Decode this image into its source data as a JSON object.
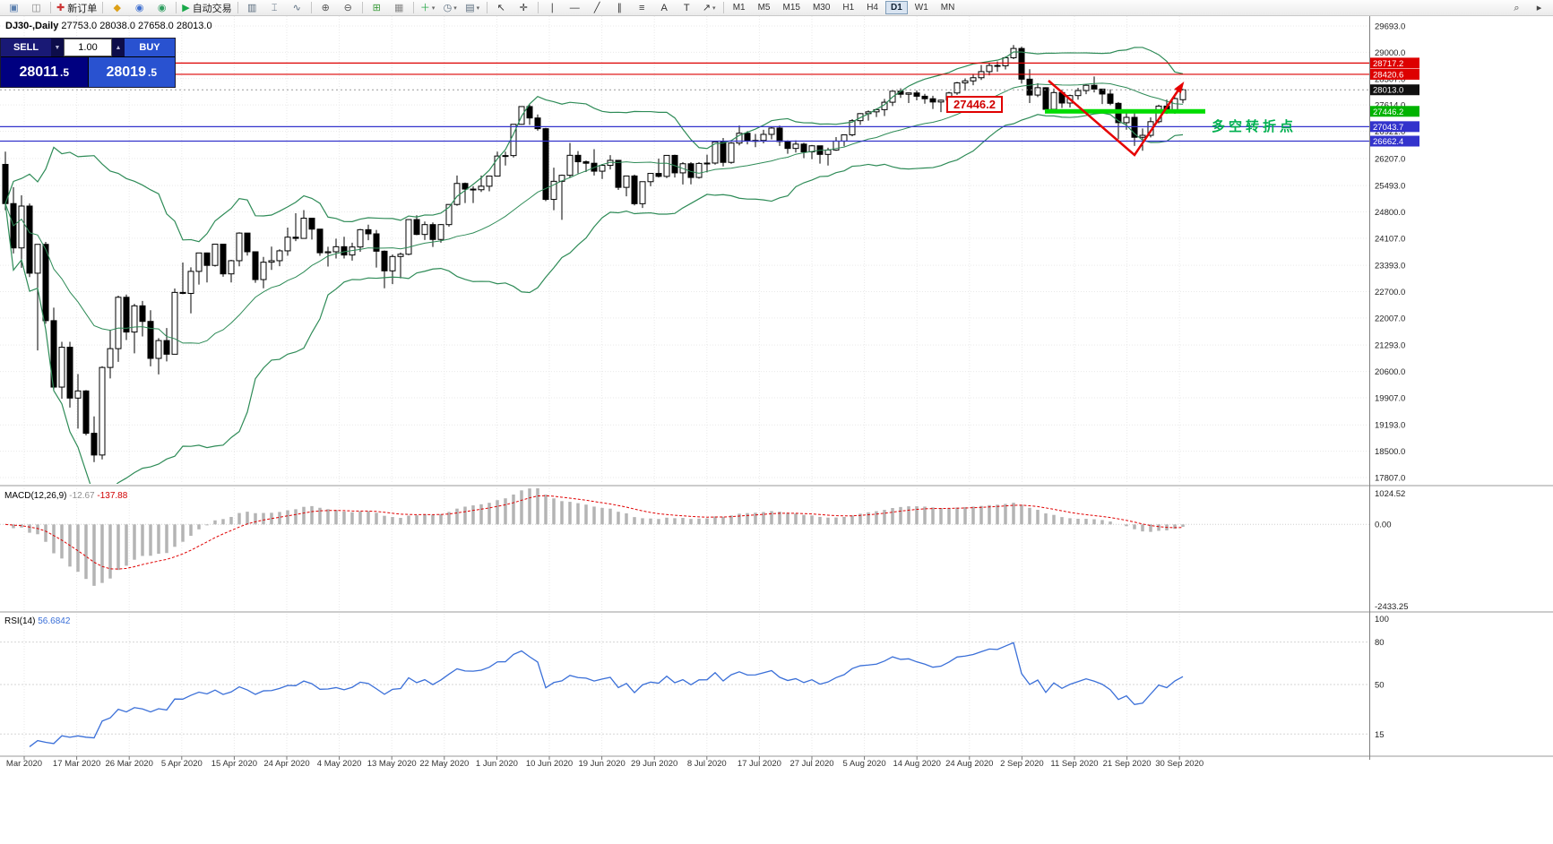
{
  "toolbar": {
    "groups": [
      {
        "items": [
          {
            "name": "new-chart-icon",
            "glyph": "▣",
            "color": "#5b7fae"
          },
          {
            "name": "profiles-icon",
            "glyph": "◫",
            "color": "#888888"
          }
        ]
      },
      {
        "items": [
          {
            "name": "new-order-button",
            "glyph": "✚",
            "color": "#cc3333",
            "label": "新订单"
          }
        ]
      },
      {
        "items": [
          {
            "name": "mql5-icon",
            "glyph": "◆",
            "color": "#dda017"
          },
          {
            "name": "community-icon",
            "glyph": "◉",
            "color": "#4070d0"
          },
          {
            "name": "market-icon",
            "glyph": "◉",
            "color": "#2f9e60"
          }
        ]
      },
      {
        "items": [
          {
            "name": "auto-trading-button",
            "glyph": "▶",
            "color": "#18a848",
            "label": "自动交易"
          }
        ]
      },
      {
        "items": [
          {
            "name": "bar-chart-icon",
            "glyph": "▥",
            "color": "#5a6c7e"
          },
          {
            "name": "candlestick-chart-icon",
            "glyph": "⌶",
            "color": "#5a6c7e"
          },
          {
            "name": "line-chart-icon",
            "glyph": "∿",
            "color": "#5a6c7e"
          }
        ]
      },
      {
        "items": [
          {
            "name": "zoom-in-icon",
            "glyph": "⊕",
            "color": "#555555"
          },
          {
            "name": "zoom-out-icon",
            "glyph": "⊖",
            "color": "#555555"
          }
        ]
      },
      {
        "items": [
          {
            "name": "tile-windows-icon",
            "glyph": "⊞",
            "color": "#3a9a3a"
          },
          {
            "name": "arrange-windows-icon",
            "glyph": "▦",
            "color": "#888888"
          }
        ]
      },
      {
        "items": [
          {
            "name": "indicators-icon",
            "glyph": "＋",
            "color": "#2aa84a",
            "caret": true
          },
          {
            "name": "periods-icon",
            "glyph": "◷",
            "color": "#5a6c7e",
            "caret": true
          },
          {
            "name": "templates-icon",
            "glyph": "▤",
            "color": "#5a6c7e",
            "caret": true
          }
        ]
      },
      {
        "items": [
          {
            "name": "cursor-icon",
            "glyph": "↖",
            "color": "#333333"
          },
          {
            "name": "crosshair-icon",
            "glyph": "✛",
            "color": "#333333"
          }
        ]
      },
      {
        "items": [
          {
            "name": "vertical-line-icon",
            "glyph": "∣",
            "color": "#333333"
          },
          {
            "name": "horizontal-line-icon",
            "glyph": "―",
            "color": "#333333"
          },
          {
            "name": "trendline-icon",
            "glyph": "╱",
            "color": "#333333"
          },
          {
            "name": "channel-icon",
            "glyph": "∥",
            "color": "#333333"
          },
          {
            "name": "fibonacci-icon",
            "glyph": "≡",
            "color": "#333333"
          },
          {
            "name": "text-icon",
            "glyph": "A",
            "color": "#333333"
          },
          {
            "name": "text-label-icon",
            "glyph": "T",
            "color": "#333333"
          },
          {
            "name": "arrows-icon",
            "glyph": "↗",
            "color": "#333333",
            "caret": true
          }
        ]
      }
    ],
    "timeframes": [
      "M1",
      "M5",
      "M15",
      "M30",
      "H1",
      "H4",
      "D1",
      "W1",
      "MN"
    ],
    "active_timeframe": "D1",
    "right_items": [
      {
        "name": "search-icon",
        "glyph": "⌕",
        "color": "#444444"
      },
      {
        "name": "quick-nav-icon",
        "glyph": "▸",
        "color": "#444444"
      }
    ]
  },
  "trade_panel": {
    "sell_label": "SELL",
    "buy_label": "BUY",
    "volume": "1.00",
    "sell_price": "28011.5",
    "buy_price": "28019.5",
    "icons": {
      "spin_down": "▼",
      "spin_up": "▲"
    }
  },
  "chart": {
    "symbol_period": "DJ30-,Daily",
    "ohlc_text": "27753.0 28038.0 27658.0 28013.0",
    "callout_price": "27446.2",
    "annotation_cn": "多空转折点",
    "annotation_color": "#00b050",
    "price_gridlines": [
      29693.0,
      29000.0,
      28307.0,
      27614.0,
      26921.0,
      26207.0,
      25493.0,
      24800.0,
      24107.0,
      23393.0,
      22700.0,
      22007.0,
      21293.0,
      20600.0,
      19907.0,
      19193.0,
      18500.0,
      17807.0
    ],
    "hlines": [
      {
        "price": 28717.2,
        "label": "28717.2",
        "color": "#dd0000"
      },
      {
        "price": 28420.6,
        "label": "28420.6",
        "color": "#dd0000"
      },
      {
        "price": 27043.7,
        "label": "27043.7",
        "color": "#3333cc"
      },
      {
        "price": 26662.4,
        "label": "26662.4",
        "color": "#3333cc"
      }
    ],
    "green_line": {
      "price": 27446.2,
      "label": "27446.2",
      "color": "#00dd00",
      "badge_color": "#00b300"
    },
    "current_price": {
      "value": 28013.0,
      "label": "28013.0",
      "badge_color": "#101010"
    },
    "trend_object_color": "#e60000",
    "bollinger_color": "#2e8b57"
  },
  "macd": {
    "label": "MACD(12,26,9)",
    "value_main": "-12.67",
    "value_signal": "-137.88",
    "axis": [
      "1024.52",
      "0.00",
      "-2433.25"
    ],
    "scale_max": 1024.52,
    "scale_min": -2433.25,
    "histogram_color": "#b4b4b4",
    "signal_color": "#e00000"
  },
  "rsi": {
    "label": "RSI(14)",
    "value": "56.6842",
    "top_label": "100",
    "levels": [
      80,
      50,
      15
    ],
    "line_color": "#3a6fd8"
  },
  "time_axis": {
    "labels": [
      "Mar 2020",
      "17 Mar 2020",
      "26 Mar 2020",
      "5 Apr 2020",
      "15 Apr 2020",
      "24 Apr 2020",
      "4 May 2020",
      "13 May 2020",
      "22 May 2020",
      "1 Jun 2020",
      "10 Jun 2020",
      "19 Jun 2020",
      "29 Jun 2020",
      "8 Jul 2020",
      "17 Jul 2020",
      "27 Jul 2020",
      "5 Aug 2020",
      "14 Aug 2020",
      "24 Aug 2020",
      "2 Sep 2020",
      "11 Sep 2020",
      "21 Sep 2020",
      "30 Sep 2020"
    ]
  },
  "chart_data": {
    "type": "candlestick",
    "symbol": "DJ30-",
    "timeframe": "Daily",
    "last_ohlc": {
      "open": 27753.0,
      "high": 28038.0,
      "low": 27658.0,
      "close": 28013.0
    },
    "indicators": {
      "bollinger": {
        "period": 20,
        "deviation": 2
      },
      "macd": {
        "fast": 12,
        "slow": 26,
        "signal": 9,
        "values": [
          -12.67,
          -137.88
        ]
      },
      "rsi": {
        "period": 14,
        "value": 56.6842
      }
    },
    "candles": [
      [
        26050,
        26384,
        24843,
        25018
      ],
      [
        25018,
        25450,
        23706,
        23851
      ],
      [
        23851,
        25236,
        23328,
        24953
      ],
      [
        24953,
        25020,
        23084,
        23186
      ],
      [
        23186,
        23945,
        21154,
        23945
      ],
      [
        23945,
        24010,
        21858,
        21937
      ],
      [
        21937,
        22280,
        20117,
        20188
      ],
      [
        20188,
        21379,
        19882,
        21237
      ],
      [
        21237,
        21379,
        19649,
        19899
      ],
      [
        19899,
        20531,
        19094,
        20087
      ],
      [
        20087,
        20108,
        18917,
        18972
      ],
      [
        18972,
        19416,
        18213,
        18400
      ],
      [
        18400,
        20737,
        18286,
        20705
      ],
      [
        20705,
        21697,
        20415,
        21200
      ],
      [
        21200,
        22595,
        20853,
        22552
      ],
      [
        22552,
        22624,
        21427,
        21637
      ],
      [
        21637,
        22378,
        21076,
        22327
      ],
      [
        22327,
        22455,
        21522,
        21917
      ],
      [
        21917,
        22212,
        20735,
        20944
      ],
      [
        20944,
        21477,
        20522,
        21413
      ],
      [
        21413,
        21742,
        20863,
        21053
      ],
      [
        21053,
        22783,
        21052,
        22680
      ],
      [
        22680,
        23467,
        22634,
        22654
      ],
      [
        22654,
        23339,
        22128,
        23234
      ],
      [
        23234,
        23710,
        22886,
        23719
      ],
      [
        23719,
        23730,
        22942,
        23391
      ],
      [
        23391,
        23956,
        23361,
        23950
      ],
      [
        23950,
        23952,
        23093,
        23168
      ],
      [
        23168,
        23537,
        22941,
        23515
      ],
      [
        23515,
        24264,
        23368,
        24242
      ],
      [
        24242,
        24245,
        23650,
        23750
      ],
      [
        23750,
        23751,
        22934,
        23018
      ],
      [
        23018,
        23613,
        22789,
        23475
      ],
      [
        23475,
        23885,
        23272,
        23515
      ],
      [
        23515,
        23815,
        23371,
        23775
      ],
      [
        23775,
        24386,
        23648,
        24134
      ],
      [
        24134,
        24764,
        24029,
        24102
      ],
      [
        24102,
        24846,
        24094,
        24634
      ],
      [
        24634,
        24635,
        24070,
        24346
      ],
      [
        24346,
        24351,
        23645,
        23724
      ],
      [
        23724,
        23884,
        23361,
        23750
      ],
      [
        23750,
        24094,
        23574,
        23883
      ],
      [
        23883,
        24144,
        23572,
        23665
      ],
      [
        23665,
        23988,
        23516,
        23876
      ],
      [
        23876,
        24350,
        23751,
        24331
      ],
      [
        24331,
        24462,
        24055,
        24222
      ],
      [
        24222,
        24325,
        23333,
        23765
      ],
      [
        23765,
        23785,
        22790,
        23248
      ],
      [
        23248,
        23680,
        22898,
        23625
      ],
      [
        23625,
        23730,
        23050,
        23685
      ],
      [
        23685,
        24600,
        23660,
        24597
      ],
      [
        24597,
        24710,
        24186,
        24206
      ],
      [
        24206,
        24546,
        24060,
        24465
      ],
      [
        24465,
        24522,
        23876,
        24074
      ],
      [
        24074,
        24481,
        23988,
        24465
      ],
      [
        24465,
        24995,
        24411,
        24995
      ],
      [
        24995,
        25758,
        24961,
        25548
      ],
      [
        25548,
        25573,
        25031,
        25400
      ],
      [
        25400,
        25476,
        25031,
        25383
      ],
      [
        25383,
        25758,
        25324,
        25475
      ],
      [
        25475,
        25743,
        25343,
        25742
      ],
      [
        25742,
        26384,
        25741,
        26270
      ],
      [
        26270,
        26386,
        26019,
        26282
      ],
      [
        26282,
        27110,
        26233,
        27105
      ],
      [
        27105,
        27580,
        27093,
        27572
      ],
      [
        27572,
        27622,
        27090,
        27272
      ],
      [
        27272,
        27365,
        26938,
        26990
      ],
      [
        26990,
        27010,
        25082,
        25128
      ],
      [
        25128,
        25965,
        24843,
        25605
      ],
      [
        25605,
        25780,
        24590,
        25763
      ],
      [
        25763,
        26611,
        25700,
        26289
      ],
      [
        26289,
        26400,
        25811,
        26119
      ],
      [
        26119,
        26154,
        25848,
        26080
      ],
      [
        26080,
        26451,
        25759,
        25871
      ],
      [
        25871,
        26059,
        25667,
        26024
      ],
      [
        26024,
        26294,
        25916,
        26156
      ],
      [
        26156,
        26157,
        25376,
        25445
      ],
      [
        25445,
        25745,
        25209,
        25745
      ],
      [
        25745,
        25782,
        24971,
        25015
      ],
      [
        25015,
        25602,
        24902,
        25595
      ],
      [
        25595,
        25813,
        25475,
        25812
      ],
      [
        25812,
        26204,
        25704,
        25734
      ],
      [
        25734,
        26290,
        25690,
        26287
      ],
      [
        26287,
        26305,
        25705,
        25827
      ],
      [
        25827,
        26108,
        25523,
        26067
      ],
      [
        26067,
        26109,
        25524,
        25706
      ],
      [
        25706,
        26109,
        25675,
        26075
      ],
      [
        26075,
        26306,
        25840,
        26085
      ],
      [
        26085,
        26650,
        26044,
        26642
      ],
      [
        26642,
        26744,
        25996,
        26103
      ],
      [
        26103,
        26640,
        26068,
        26611
      ],
      [
        26611,
        27071,
        26550,
        26870
      ],
      [
        26870,
        26926,
        26576,
        26672
      ],
      [
        26672,
        26852,
        26504,
        26681
      ],
      [
        26681,
        26959,
        26605,
        26840
      ],
      [
        26840,
        27040,
        26710,
        27006
      ],
      [
        27006,
        27071,
        26536,
        26652
      ],
      [
        26652,
        26683,
        26330,
        26470
      ],
      [
        26470,
        26683,
        26361,
        26584
      ],
      [
        26584,
        26617,
        26214,
        26379
      ],
      [
        26379,
        26562,
        26188,
        26539
      ],
      [
        26539,
        26546,
        26069,
        26313
      ],
      [
        26313,
        26489,
        26019,
        26428
      ],
      [
        26428,
        26768,
        26407,
        26664
      ],
      [
        26664,
        26840,
        26528,
        26828
      ],
      [
        26828,
        27240,
        26788,
        27201
      ],
      [
        27201,
        27400,
        27089,
        27386
      ],
      [
        27386,
        27470,
        27201,
        27433
      ],
      [
        27433,
        27522,
        27297,
        27491
      ],
      [
        27491,
        27775,
        27322,
        27686
      ],
      [
        27686,
        27990,
        27586,
        27976
      ],
      [
        27976,
        28050,
        27801,
        27896
      ],
      [
        27896,
        27939,
        27665,
        27931
      ],
      [
        27931,
        27998,
        27737,
        27844
      ],
      [
        27844,
        27908,
        27646,
        27778
      ],
      [
        27778,
        27855,
        27510,
        27692
      ],
      [
        27692,
        27757,
        27425,
        27739
      ],
      [
        27739,
        27959,
        27665,
        27930
      ],
      [
        27930,
        28222,
        27880,
        28195
      ],
      [
        28195,
        28314,
        27990,
        28248
      ],
      [
        28248,
        28435,
        28134,
        28331
      ],
      [
        28331,
        28668,
        28272,
        28492
      ],
      [
        28492,
        28733,
        28393,
        28654
      ],
      [
        28654,
        28758,
        28489,
        28645
      ],
      [
        28645,
        28890,
        28548,
        28857
      ],
      [
        28857,
        29193,
        28820,
        29101
      ],
      [
        29101,
        29147,
        28178,
        28293
      ],
      [
        28293,
        28554,
        27665,
        27875
      ],
      [
        27875,
        28186,
        27822,
        28069
      ],
      [
        28069,
        28080,
        27447,
        27500
      ],
      [
        27500,
        28046,
        27444,
        27940
      ],
      [
        27940,
        28012,
        27534,
        27665
      ],
      [
        27665,
        27886,
        27548,
        27861
      ],
      [
        27861,
        28066,
        27754,
        27993
      ],
      [
        27993,
        28152,
        27899,
        28132
      ],
      [
        28132,
        28364,
        27946,
        28032
      ],
      [
        28032,
        28042,
        27638,
        27902
      ],
      [
        27902,
        28024,
        27610,
        27657
      ],
      [
        27657,
        27691,
        26717,
        27148
      ],
      [
        27148,
        27401,
        26963,
        27288
      ],
      [
        27288,
        27420,
        26537,
        26763
      ],
      [
        26763,
        26995,
        26409,
        26815
      ],
      [
        26815,
        27288,
        26760,
        27174
      ],
      [
        27174,
        27620,
        27130,
        27584
      ],
      [
        27584,
        27757,
        27380,
        27452
      ],
      [
        27452,
        27816,
        27382,
        27782
      ],
      [
        27753,
        28038,
        27658,
        28013
      ]
    ]
  }
}
